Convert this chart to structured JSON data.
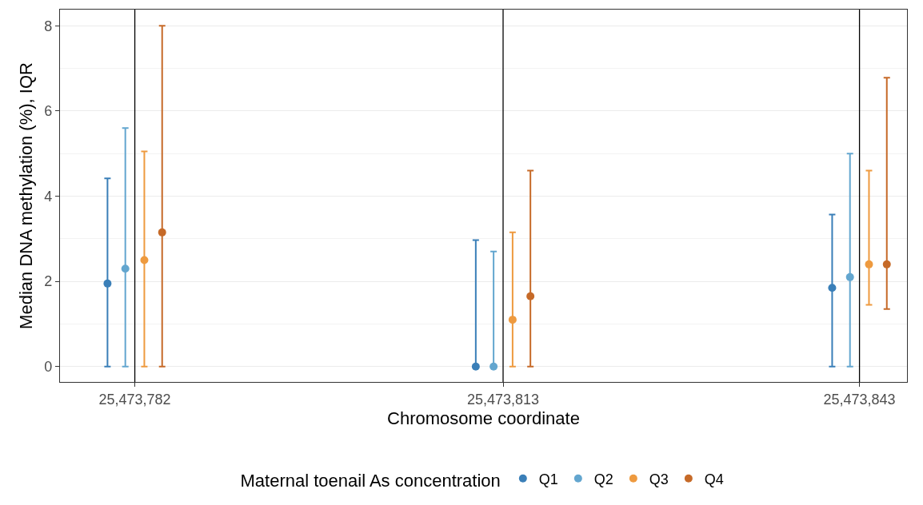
{
  "chart_data": {
    "type": "scatter",
    "xlabel": "Chromosome coordinate",
    "ylabel": "Median DNA methylation (%), IQR",
    "legend_title": "Maternal toenail As concentration",
    "xlim": [
      25473775.7,
      25473847.0
    ],
    "xticks": [
      {
        "value": 25473782,
        "label": "25,473,782"
      },
      {
        "value": 25473813,
        "label": "25,473,813"
      },
      {
        "value": 25473843,
        "label": "25,473,843"
      }
    ],
    "ylim": [
      -0.36,
      8.38
    ],
    "yticks": [
      0,
      2,
      4,
      6,
      8
    ],
    "grid": "y",
    "legend": "bottom",
    "marker": "circle",
    "ref_lines": [
      {
        "axis": "x",
        "value": 25473782,
        "color": "#000000"
      },
      {
        "axis": "x",
        "value": 25473813,
        "color": "#000000"
      },
      {
        "axis": "x",
        "value": 25473843,
        "color": "#000000"
      }
    ],
    "series": [
      {
        "name": "Q1",
        "color": "#3a7fb8",
        "x": [
          25473779.7,
          25473810.7,
          25473840.7
        ],
        "values": [
          1.95,
          0,
          1.85
        ],
        "errors": [
          [
            0,
            4.42
          ],
          [
            0,
            2.97
          ],
          [
            0,
            3.57
          ]
        ]
      },
      {
        "name": "Q2",
        "color": "#63a6cf",
        "x": [
          25473781.2,
          25473812.2,
          25473842.2
        ],
        "values": [
          2.3,
          0,
          2.1
        ],
        "errors": [
          [
            0,
            5.6
          ],
          [
            0,
            2.7
          ],
          [
            0,
            5.0
          ]
        ]
      },
      {
        "name": "Q3",
        "color": "#ee9a3f",
        "x": [
          25473782.8,
          25473813.8,
          25473843.8
        ],
        "values": [
          2.5,
          1.1,
          2.4
        ],
        "errors": [
          [
            0,
            5.05
          ],
          [
            0,
            3.15
          ],
          [
            1.45,
            4.6
          ]
        ]
      },
      {
        "name": "Q4",
        "color": "#c66a28",
        "x": [
          25473784.3,
          25473815.3,
          25473845.3
        ],
        "values": [
          3.15,
          1.65,
          2.4
        ],
        "errors": [
          [
            0,
            8.0
          ],
          [
            0,
            4.6
          ],
          [
            1.35,
            6.78
          ]
        ]
      }
    ]
  }
}
